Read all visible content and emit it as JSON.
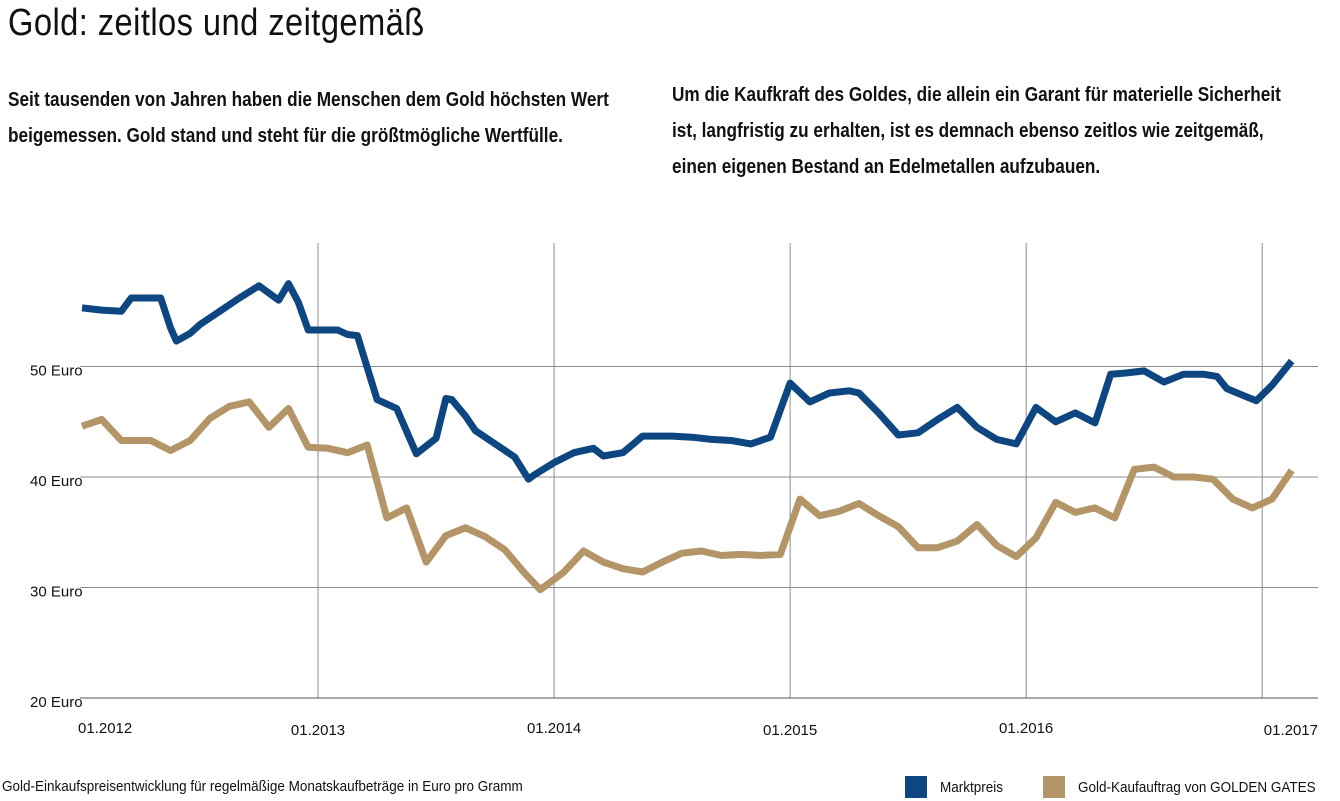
{
  "header": {
    "title": "Gold: zeitlos und zeitgemäß",
    "intro_left": "Seit tausenden von Jahren haben die Menschen dem Gold höchsten Wert beigemessen. Gold stand und steht für die größtmögliche Wertfülle.",
    "intro_right": "Um die Kaufkraft des Goldes, die allein ein Garant für materielle Sicherheit ist, langfristig zu erhalten, ist es demnach ebenso zeitlos wie zeitgemäß, einen eigenen Bestand an Edelmetallen aufzubauen."
  },
  "caption": "Gold-Einkaufspreisentwicklung  für regelmäßige Monatskaufbeträge  in Euro pro Gramm",
  "chart_data": {
    "type": "line",
    "title": "",
    "xlabel": "",
    "ylabel": "",
    "ylim": [
      20,
      60
    ],
    "xlim": [
      0,
      60
    ],
    "grid": true,
    "y_ticks": [
      {
        "value": 50,
        "label": "50 Euro"
      },
      {
        "value": 40,
        "label": "40 Euro"
      },
      {
        "value": 30,
        "label": "30 Euro"
      },
      {
        "value": 20,
        "label": "20 Euro"
      }
    ],
    "x_ticks": [
      {
        "value": 0,
        "label": "01.2012"
      },
      {
        "value": 12,
        "label": "01.2013"
      },
      {
        "value": 24,
        "label": "01.2014"
      },
      {
        "value": 36,
        "label": "01.2015"
      },
      {
        "value": 48,
        "label": "01.2016"
      },
      {
        "value": 60,
        "label": "01.2017"
      }
    ],
    "legend_position": "bottom-right",
    "series": [
      {
        "name": "Marktpreis",
        "color": "#0d4680",
        "points": [
          [
            0,
            55.3
          ],
          [
            1,
            55.1
          ],
          [
            2,
            55.0
          ],
          [
            2.5,
            56.2
          ],
          [
            4,
            56.2
          ],
          [
            4.5,
            53.5
          ],
          [
            4.8,
            52.3
          ],
          [
            5.5,
            53.0
          ],
          [
            6,
            53.8
          ],
          [
            7,
            55.0
          ],
          [
            8,
            56.2
          ],
          [
            9,
            57.3
          ],
          [
            10,
            56.0
          ],
          [
            10.5,
            57.5
          ],
          [
            11,
            55.8
          ],
          [
            11.5,
            53.3
          ],
          [
            13,
            53.3
          ],
          [
            13.5,
            52.9
          ],
          [
            14,
            52.8
          ],
          [
            15,
            47.0
          ],
          [
            16,
            46.2
          ],
          [
            17,
            42.1
          ],
          [
            18,
            43.5
          ],
          [
            18.5,
            47.1
          ],
          [
            18.8,
            47.0
          ],
          [
            19.5,
            45.5
          ],
          [
            20,
            44.2
          ],
          [
            21,
            43.0
          ],
          [
            22,
            41.8
          ],
          [
            22.7,
            39.8
          ],
          [
            23,
            40.2
          ],
          [
            24,
            41.3
          ],
          [
            25,
            42.2
          ],
          [
            26,
            42.6
          ],
          [
            26.5,
            41.9
          ],
          [
            27.5,
            42.2
          ],
          [
            28.5,
            43.7
          ],
          [
            30,
            43.7
          ],
          [
            31,
            43.6
          ],
          [
            32,
            43.4
          ],
          [
            33,
            43.3
          ],
          [
            34,
            43.0
          ],
          [
            35,
            43.6
          ],
          [
            36,
            48.5
          ],
          [
            37,
            46.8
          ],
          [
            38,
            47.6
          ],
          [
            39,
            47.8
          ],
          [
            39.5,
            47.6
          ],
          [
            40.5,
            45.8
          ],
          [
            41.5,
            43.8
          ],
          [
            42.5,
            44.0
          ],
          [
            43.5,
            45.2
          ],
          [
            44.5,
            46.3
          ],
          [
            45.5,
            44.5
          ],
          [
            46.5,
            43.4
          ],
          [
            47.5,
            43.0
          ],
          [
            48.5,
            46.3
          ],
          [
            49.5,
            45.0
          ],
          [
            50.5,
            45.8
          ],
          [
            51.5,
            44.9
          ],
          [
            52.3,
            49.3
          ],
          [
            53,
            49.4
          ],
          [
            54,
            49.6
          ],
          [
            55,
            48.6
          ],
          [
            56,
            49.3
          ],
          [
            57,
            49.3
          ],
          [
            57.7,
            49.1
          ],
          [
            58.2,
            48.0
          ],
          [
            59,
            47.4
          ],
          [
            59.7,
            46.9
          ],
          [
            60.5,
            48.3
          ],
          [
            61.5,
            50.5
          ]
        ]
      },
      {
        "name": "Gold-Kaufauftrag von GOLDEN GATES",
        "color": "#b49567",
        "points": [
          [
            0,
            44.6
          ],
          [
            1,
            45.2
          ],
          [
            2,
            43.3
          ],
          [
            3.5,
            43.3
          ],
          [
            4.5,
            42.4
          ],
          [
            5.5,
            43.3
          ],
          [
            6.5,
            45.3
          ],
          [
            7.5,
            46.4
          ],
          [
            8.5,
            46.8
          ],
          [
            9.5,
            44.5
          ],
          [
            10.5,
            46.2
          ],
          [
            11.5,
            42.7
          ],
          [
            12.5,
            42.6
          ],
          [
            13.5,
            42.2
          ],
          [
            14.5,
            42.9
          ],
          [
            15.5,
            36.3
          ],
          [
            16.5,
            37.2
          ],
          [
            17.5,
            32.3
          ],
          [
            18.5,
            34.7
          ],
          [
            19.5,
            35.4
          ],
          [
            20.5,
            34.6
          ],
          [
            21.5,
            33.4
          ],
          [
            22.5,
            31.3
          ],
          [
            23.3,
            29.8
          ],
          [
            24.5,
            31.4
          ],
          [
            25.5,
            33.3
          ],
          [
            26.5,
            32.3
          ],
          [
            27.5,
            31.7
          ],
          [
            28.5,
            31.4
          ],
          [
            29.5,
            32.3
          ],
          [
            30.5,
            33.1
          ],
          [
            31.5,
            33.3
          ],
          [
            32.5,
            32.9
          ],
          [
            33.5,
            33.0
          ],
          [
            34.5,
            32.9
          ],
          [
            35.5,
            33.0
          ],
          [
            36.5,
            38.0
          ],
          [
            37.5,
            36.5
          ],
          [
            38.5,
            36.9
          ],
          [
            39.5,
            37.6
          ],
          [
            40.5,
            36.5
          ],
          [
            41.5,
            35.5
          ],
          [
            42.5,
            33.6
          ],
          [
            43.5,
            33.6
          ],
          [
            44.5,
            34.2
          ],
          [
            45.5,
            35.7
          ],
          [
            46.5,
            33.8
          ],
          [
            47.5,
            32.8
          ],
          [
            48.5,
            34.5
          ],
          [
            49.5,
            37.7
          ],
          [
            50.5,
            36.8
          ],
          [
            51.5,
            37.2
          ],
          [
            52.5,
            36.3
          ],
          [
            53.5,
            40.7
          ],
          [
            54.5,
            40.9
          ],
          [
            55.5,
            40.0
          ],
          [
            56.5,
            40.0
          ],
          [
            57.5,
            39.8
          ],
          [
            58.5,
            38.0
          ],
          [
            59.5,
            37.2
          ],
          [
            60.5,
            38.0
          ],
          [
            61.5,
            40.6
          ]
        ]
      }
    ]
  }
}
